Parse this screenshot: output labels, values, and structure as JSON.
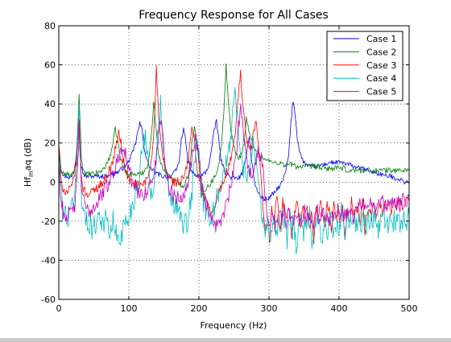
{
  "chart_data": {
    "type": "line",
    "title": "Frequency Response for All Cases",
    "xlabel": "Frequency (Hz)",
    "ylabel": {
      "main": "Hf",
      "sub": "m",
      "rest": "aq (dB)"
    },
    "xlim": [
      0,
      500
    ],
    "ylim": [
      -60,
      80
    ],
    "xticks": [
      0,
      100,
      200,
      300,
      400,
      500
    ],
    "yticks": [
      -60,
      -40,
      -20,
      0,
      20,
      40,
      60,
      80
    ],
    "grid": "dotted",
    "legend_location": "top-right",
    "x_step": 1,
    "series": [
      {
        "name": "Case 1",
        "color": "#0000ff",
        "noise": 1.2,
        "values": [
          19,
          7,
          4,
          3,
          3,
          2,
          3,
          6,
          14,
          32,
          10,
          5,
          3,
          3,
          3,
          3,
          3,
          3,
          3,
          3,
          3,
          3,
          3,
          4,
          4,
          4,
          5,
          5,
          6,
          7,
          8,
          9,
          11,
          13,
          16,
          20,
          25,
          30,
          27,
          18,
          12,
          9,
          7,
          6,
          5,
          4,
          4,
          3,
          3,
          3,
          3,
          3,
          4,
          5,
          7,
          11,
          22,
          28,
          20,
          11,
          7,
          5,
          4,
          3,
          3,
          3,
          4,
          5,
          7,
          11,
          19,
          26,
          32,
          22,
          12,
          8,
          5,
          4,
          3,
          2,
          2,
          2,
          2,
          3,
          5,
          9,
          18,
          23,
          12,
          3,
          -3,
          -5,
          -7,
          -8,
          -9,
          -9,
          -8,
          -7,
          -6,
          -5,
          -3,
          -2,
          0,
          3,
          7,
          14,
          30,
          42,
          34,
          22,
          16,
          12,
          10,
          9,
          8,
          8,
          8,
          8,
          8,
          8,
          9,
          9,
          9,
          10,
          10,
          10,
          10,
          10,
          10,
          10,
          10,
          9,
          9,
          9,
          8,
          8,
          8,
          7,
          7,
          7,
          6,
          6,
          6,
          5,
          5,
          5,
          4,
          4,
          4,
          3,
          3,
          3,
          3,
          2,
          2,
          2,
          1,
          1,
          0,
          0,
          0
        ]
      },
      {
        "name": "Case 2",
        "color": "#007f00",
        "noise": 1.5,
        "values": [
          18,
          6,
          5,
          4,
          4,
          3,
          4,
          6,
          15,
          45,
          12,
          6,
          4,
          4,
          4,
          4,
          4,
          5,
          5,
          6,
          7,
          9,
          11,
          15,
          20,
          27,
          22,
          14,
          9,
          7,
          5,
          4,
          4,
          4,
          4,
          4,
          4,
          5,
          6,
          8,
          13,
          25,
          40,
          29,
          16,
          10,
          7,
          6,
          5,
          3,
          2,
          1,
          0,
          -1,
          -1,
          -2,
          0,
          3,
          9,
          22,
          28,
          20,
          10,
          -8,
          -5,
          -3,
          -2,
          -1,
          1,
          3,
          6,
          11,
          20,
          34,
          60,
          42,
          28,
          20,
          16,
          13,
          13,
          15,
          20,
          33,
          26,
          22,
          19,
          17,
          15,
          14,
          13,
          12,
          11,
          11,
          10,
          10,
          10,
          10,
          10,
          9,
          9,
          9,
          9,
          9,
          9,
          8,
          8,
          8,
          8,
          8,
          8,
          8,
          8,
          8,
          8,
          8,
          7,
          7,
          7,
          7,
          7,
          7,
          7,
          7,
          7,
          7,
          7,
          6,
          6,
          6,
          6,
          6,
          6,
          6,
          6,
          6,
          6,
          6,
          6,
          6,
          6,
          6,
          6,
          6,
          6,
          6,
          6,
          6,
          6,
          6,
          6,
          6,
          6,
          6,
          6,
          6
        ]
      },
      {
        "name": "Case 3",
        "color": "#ff0000",
        "noise": 2.5,
        "values": [
          20,
          0,
          -3,
          -5,
          -5,
          -4,
          -2,
          3,
          10,
          30,
          4,
          -3,
          -5,
          -6,
          -6,
          -5,
          -4,
          -3,
          -2,
          -1,
          0,
          2,
          4,
          6,
          9,
          14,
          20,
          25,
          20,
          12,
          6,
          3,
          1,
          0,
          -1,
          -1,
          -2,
          -2,
          -1,
          0,
          2,
          6,
          15,
          28,
          58,
          33,
          20,
          12,
          7,
          4,
          2,
          1,
          0,
          0,
          0,
          0,
          2,
          4,
          9,
          18,
          28,
          22,
          10,
          3,
          -2,
          -5,
          -8,
          -11,
          -14,
          -17,
          -15,
          -10,
          -6,
          -3,
          0,
          3,
          6,
          10,
          14,
          20,
          30,
          45,
          55,
          40,
          28,
          20,
          16,
          18,
          26,
          30,
          18,
          5,
          -14,
          -25,
          -20,
          -30,
          -12,
          -22,
          -8,
          -12,
          -25,
          -10,
          -15,
          -18,
          -12,
          -30,
          -20,
          -10,
          -14,
          -25,
          -12,
          -18,
          -10,
          -25,
          -15,
          -30,
          -12,
          -20,
          -10,
          -16,
          -22,
          -12,
          -15,
          -25,
          -10,
          -18,
          -14,
          -20,
          -12,
          -30,
          -15,
          -22,
          -10,
          -18,
          -12,
          -14,
          -20,
          -10,
          -25,
          -15,
          -12,
          -18,
          -10,
          -20,
          -14,
          -12,
          -16,
          -10,
          -14,
          -12,
          -15,
          -10,
          -13,
          -11,
          -10,
          -12,
          -10,
          -9,
          -10
        ]
      },
      {
        "name": "Case 4",
        "color": "#00bfbf",
        "noise": 6,
        "values": [
          15,
          -5,
          -18,
          -15,
          -20,
          -18,
          -10,
          -5,
          5,
          40,
          -5,
          -15,
          -20,
          -22,
          -20,
          -25,
          -22,
          -18,
          -15,
          -20,
          -22,
          -18,
          -24,
          -26,
          -20,
          -25,
          -30,
          -28,
          -25,
          -22,
          -20,
          -18,
          -14,
          -10,
          -5,
          0,
          8,
          15,
          24,
          18,
          5,
          -8,
          -2,
          10,
          28,
          40,
          20,
          5,
          -2,
          -5,
          -10,
          -12,
          -14,
          -16,
          -18,
          -22,
          -20,
          -25,
          -12,
          -5,
          10,
          22,
          14,
          2,
          -10,
          -15,
          -20,
          -18,
          -15,
          -12,
          -8,
          -4,
          0,
          4,
          8,
          14,
          22,
          38,
          48,
          32,
          18,
          10,
          6,
          4,
          6,
          14,
          20,
          14,
          6,
          -5,
          -20,
          -25,
          -20,
          -30,
          -22,
          -18,
          -25,
          -20,
          -28,
          -15,
          -22,
          -30,
          -18,
          -25,
          -20,
          -35,
          -22,
          -18,
          -28,
          -20,
          -25,
          -15,
          -30,
          -22,
          -20,
          -18,
          -28,
          -25,
          -20,
          -32,
          -18,
          -22,
          -25,
          -20,
          -28,
          -15,
          -22,
          -25,
          -20,
          -18,
          -24,
          -20,
          -26,
          -18,
          -22,
          -20,
          -25,
          -18,
          -22,
          -20,
          -18,
          -25,
          -20,
          -22,
          -18,
          -20,
          -22,
          -18,
          -20,
          -20,
          -18,
          -22,
          -20,
          -18,
          -20,
          -18
        ]
      },
      {
        "name": "Case 5",
        "color": "#bf00bf",
        "noise": 4,
        "values": [
          10,
          -10,
          -15,
          -18,
          -16,
          -17,
          -15,
          -12,
          0,
          28,
          -2,
          -10,
          -14,
          -15,
          -14,
          -13,
          -12,
          -10,
          -8,
          -6,
          -4,
          -2,
          0,
          2,
          5,
          8,
          12,
          16,
          20,
          16,
          10,
          5,
          1,
          -2,
          -4,
          -5,
          -6,
          -6,
          -5,
          -4,
          -2,
          1,
          6,
          14,
          26,
          34,
          20,
          8,
          0,
          -4,
          -6,
          -7,
          -8,
          -8,
          -7,
          -5,
          -2,
          2,
          8,
          16,
          24,
          18,
          8,
          -2,
          -8,
          -12,
          -15,
          -18,
          -20,
          -22,
          -22,
          -20,
          -18,
          -15,
          -10,
          -5,
          0,
          6,
          14,
          28,
          40,
          28,
          16,
          10,
          6,
          4,
          8,
          12,
          18,
          12,
          2,
          -10,
          -18,
          -20,
          -16,
          -22,
          -18,
          -14,
          -20,
          -16,
          -22,
          -12,
          -18,
          -20,
          -16,
          -14,
          -22,
          -18,
          -12,
          -20,
          -15,
          -18,
          -22,
          -14,
          -16,
          -20,
          -12,
          -18,
          -15,
          -20,
          -14,
          -18,
          -16,
          -12,
          -20,
          -15,
          -18,
          -14,
          -12,
          -16,
          -18,
          -14,
          -10,
          -15,
          -12,
          -16,
          -14,
          -10,
          -12,
          -15,
          -14,
          -12,
          -10,
          -12,
          -14,
          -12,
          -10,
          -12,
          -11,
          -10,
          -12,
          -10,
          -9,
          -10,
          -8
        ]
      }
    ]
  }
}
